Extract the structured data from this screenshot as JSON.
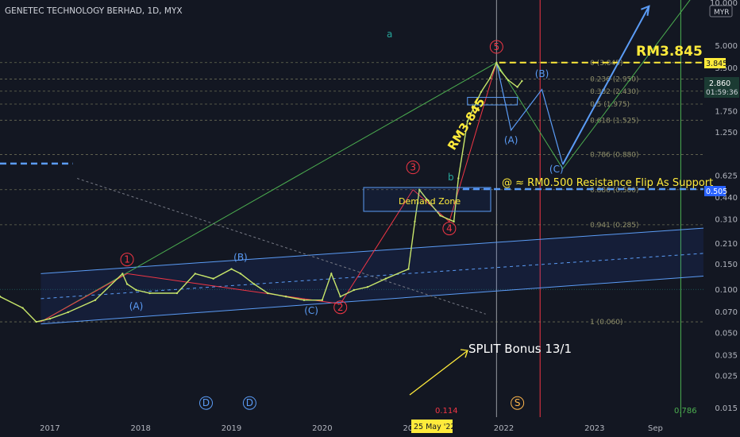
{
  "header": {
    "symbol_title": "GENETEC TECHNOLOGY BERHAD, 1D, MYX"
  },
  "currency_button": "MYR",
  "price_axis": {
    "ticks": [
      {
        "value": 10.0,
        "label": "10.000"
      },
      {
        "value": 5.0,
        "label": "5.000"
      },
      {
        "value": 3.5,
        "label": "3.500"
      },
      {
        "value": 1.75,
        "label": "1.750"
      },
      {
        "value": 1.25,
        "label": "1.250"
      },
      {
        "value": 0.625,
        "label": "0.625"
      },
      {
        "value": 0.44,
        "label": "0.440"
      },
      {
        "value": 0.31,
        "label": "0.310"
      },
      {
        "value": 0.21,
        "label": "0.210"
      },
      {
        "value": 0.15,
        "label": "0.150"
      },
      {
        "value": 0.1,
        "label": "0.100"
      },
      {
        "value": 0.07,
        "label": "0.070"
      },
      {
        "value": 0.05,
        "label": "0.050"
      },
      {
        "value": 0.035,
        "label": "0.035"
      },
      {
        "value": 0.025,
        "label": "0.025"
      },
      {
        "value": 0.015,
        "label": "0.015"
      }
    ],
    "current_price": "2.860",
    "countdown": "01:59:36",
    "label_3845": "3.845",
    "label_0505": "0.505"
  },
  "time_axis": {
    "ticks": [
      {
        "t": 2017.0,
        "label": "2017"
      },
      {
        "t": 2018.0,
        "label": "2018"
      },
      {
        "t": 2019.0,
        "label": "2019"
      },
      {
        "t": 2020.0,
        "label": "2020"
      },
      {
        "t": 2021.0,
        "label": "2021"
      },
      {
        "t": 2022.0,
        "label": "2022"
      },
      {
        "t": 2023.0,
        "label": "2023"
      },
      {
        "t": 2023.67,
        "label": "Sep"
      }
    ],
    "cursor_label": "25 May '22"
  },
  "annotations": {
    "rm_top": "RM3.845",
    "rm_diag": "RM3.845",
    "resistance_note": "@ ≈ RM0.500 Resistance Flip As Support",
    "demand_zone": "Demand Zone",
    "split_note": "SPLIT Bonus 13/1",
    "bottom_red_value": "0.114",
    "bottom_green_value": "0.786",
    "wave_a_green": "a",
    "wave_b_green": "b"
  },
  "chart_data": {
    "type": "line",
    "title": "GENETEC TECHNOLOGY BERHAD, 1D, MYX",
    "yscale": "log",
    "ylim": [
      0.013,
      10.5
    ],
    "xlim": [
      2016.45,
      2024.2
    ],
    "series": [
      {
        "name": "",
        "x": [
          2016.45,
          2016.7,
          2016.85,
          2017.0,
          2017.2,
          2017.5,
          2017.8,
          2017.85,
          2017.95,
          2018.1,
          2018.4,
          2018.6,
          2018.8,
          2019.0,
          2019.1,
          2019.25,
          2019.4,
          2019.6,
          2019.8,
          2020.0,
          2020.1,
          2020.2,
          2020.35,
          2020.5,
          2020.7,
          2020.95,
          2021.02,
          2021.07,
          2021.15,
          2021.3,
          2021.45,
          2021.5,
          2021.6,
          2021.75,
          2021.85,
          2021.92,
          2021.96,
          2022.05,
          2022.15,
          2022.2
        ],
        "y": [
          0.09,
          0.075,
          0.06,
          0.063,
          0.07,
          0.085,
          0.13,
          0.11,
          0.1,
          0.095,
          0.095,
          0.13,
          0.12,
          0.14,
          0.13,
          0.11,
          0.095,
          0.09,
          0.085,
          0.085,
          0.13,
          0.09,
          0.1,
          0.105,
          0.12,
          0.14,
          0.3,
          0.5,
          0.43,
          0.33,
          0.3,
          0.6,
          1.5,
          2.4,
          3.0,
          3.845,
          3.4,
          2.9,
          2.6,
          2.86
        ]
      }
    ],
    "fib_levels": [
      {
        "ratio": "0",
        "price": 3.845,
        "label": "0 (3.845)"
      },
      {
        "ratio": "0.236",
        "price": 2.95,
        "label": "0.236 (2.950)"
      },
      {
        "ratio": "0.382",
        "price": 2.43,
        "label": "0.382 (2.430)"
      },
      {
        "ratio": "0.5",
        "price": 1.975,
        "label": "0.5 (1.975)"
      },
      {
        "ratio": "0.618",
        "price": 1.525,
        "label": "0.618 (1.525)"
      },
      {
        "ratio": "0.786",
        "price": 0.88,
        "label": "0.786 (0.880)"
      },
      {
        "ratio": "0.886",
        "price": 0.5,
        "label": "0.886 (0.500)"
      },
      {
        "ratio": "0.941",
        "price": 0.285,
        "label": "0.941 (0.285)"
      },
      {
        "ratio": "1",
        "price": 0.06,
        "label": "1 (0.060)"
      }
    ],
    "wave_labels": [
      {
        "text": "1",
        "t": 2017.85,
        "p": 0.155,
        "color": "red",
        "circled": true
      },
      {
        "text": "(A)",
        "t": 2017.95,
        "p": 0.073,
        "color": "blue",
        "circled": false
      },
      {
        "text": "(B)",
        "t": 2019.1,
        "p": 0.16,
        "color": "blue",
        "circled": false
      },
      {
        "text": "(C)",
        "t": 2019.88,
        "p": 0.068,
        "color": "blue",
        "circled": false
      },
      {
        "text": "2",
        "t": 2020.2,
        "p": 0.072,
        "color": "red",
        "circled": true
      },
      {
        "text": "3",
        "t": 2021.0,
        "p": 0.68,
        "color": "red",
        "circled": true
      },
      {
        "text": "4",
        "t": 2021.4,
        "p": 0.255,
        "color": "red",
        "circled": true
      },
      {
        "text": "5",
        "t": 2021.92,
        "p": 4.7,
        "color": "red",
        "circled": true
      },
      {
        "text": "(A)",
        "t": 2022.08,
        "p": 1.05,
        "color": "blue",
        "circled": false
      },
      {
        "text": "(B)",
        "t": 2022.42,
        "p": 3.05,
        "color": "blue",
        "circled": false
      },
      {
        "text": "(C)",
        "t": 2022.58,
        "p": 0.66,
        "color": "blue",
        "circled": false
      },
      {
        "text": "D",
        "t": 2018.72,
        "p": 0.0155,
        "color": "blue",
        "circled": true
      },
      {
        "text": "D",
        "t": 2019.2,
        "p": 0.0155,
        "color": "blue",
        "circled": true
      },
      {
        "text": "S",
        "t": 2022.15,
        "p": 0.0155,
        "color": "orange",
        "circled": true
      }
    ]
  }
}
